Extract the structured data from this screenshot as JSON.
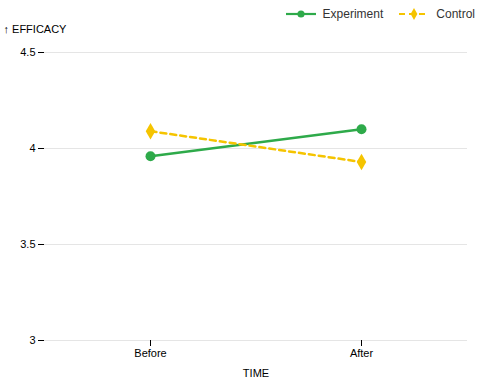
{
  "chart_data": {
    "type": "line",
    "ylabel": "EFFICACY",
    "xlabel": "TIME",
    "categories": [
      "Before",
      "After"
    ],
    "series": [
      {
        "name": "Experiment",
        "color": "#2EAA4A",
        "values": [
          3.96,
          4.1
        ],
        "marker": "circle",
        "line_style": "solid"
      },
      {
        "name": "Control",
        "color": "#F5C400",
        "values": [
          4.09,
          3.93
        ],
        "marker": "diamond",
        "line_style": "dashed"
      }
    ],
    "ylim": [
      3.0,
      4.5
    ],
    "yticks": [
      3,
      3.5,
      4,
      4.5
    ],
    "grid": "y",
    "legend": "upper right"
  }
}
